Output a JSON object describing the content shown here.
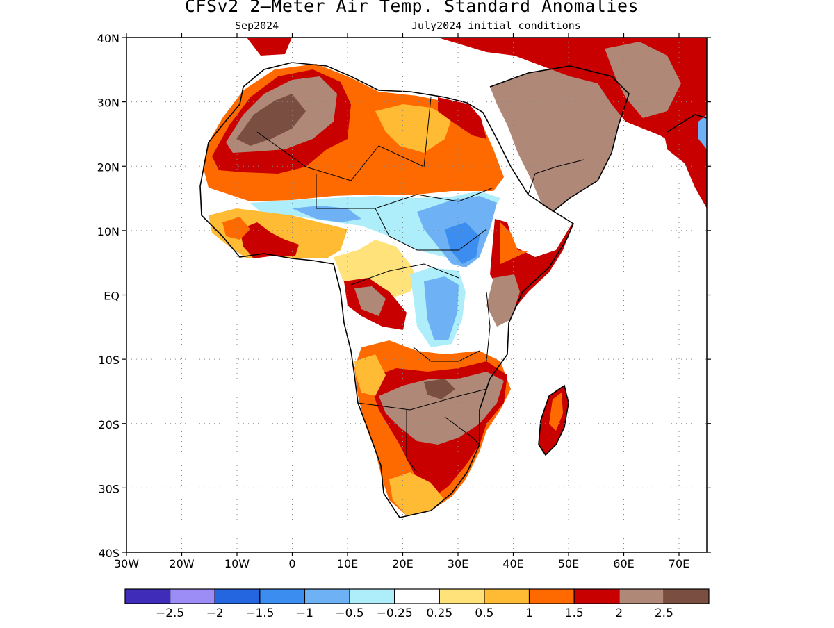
{
  "title": "CFSv2 2–Meter Air Temp. Standard Anomalies",
  "valid_month": "Sep2024",
  "initial_conditions": "July2024 initial conditions",
  "lat_labels": [
    "40N",
    "30N",
    "20N",
    "10N",
    "EQ",
    "10S",
    "20S",
    "30S",
    "40S"
  ],
  "lon_labels": [
    "30W",
    "20W",
    "10W",
    "0",
    "10E",
    "20E",
    "30E",
    "40E",
    "50E",
    "60E",
    "70E"
  ],
  "colorbar": {
    "colors": [
      "#3f2cb8",
      "#9c8cf5",
      "#2466e0",
      "#3b8ef0",
      "#6fb1f5",
      "#aeeefa",
      "#ffffff",
      "#ffe27a",
      "#ffbb33",
      "#ff6a00",
      "#c80000",
      "#b08878",
      "#7a4e40"
    ],
    "labels": [
      "−2.5",
      "−2",
      "−1.5",
      "−1",
      "−0.5",
      "−0.25",
      "0.25",
      "0.5",
      "1",
      "1.5",
      "2",
      "2.5"
    ]
  }
}
